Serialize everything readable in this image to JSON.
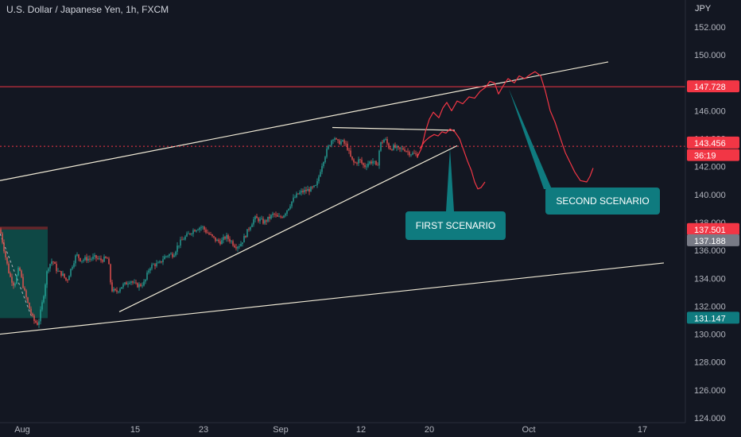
{
  "header": {
    "title": "U.S. Dollar / Japanese Yen, 1h, FXCM",
    "currency": "JPY"
  },
  "colors": {
    "background": "#131722",
    "up": "#26a69a",
    "down": "#ef5350",
    "trendline": "#f0ead6",
    "projection": "#f23645",
    "callout": "#0f7b7f",
    "resistance_line": "#f23645"
  },
  "chart_data": {
    "type": "candlestick",
    "title": "U.S. Dollar / Japanese Yen, 1h, FXCM",
    "ylim": [
      124.0,
      153.2
    ],
    "y_ticks": [
      "152.000",
      "150.000",
      "148.000",
      "146.000",
      "144.000",
      "142.000",
      "140.000",
      "138.000",
      "136.000",
      "134.000",
      "132.000",
      "130.000",
      "128.000",
      "126.000",
      "124.000"
    ],
    "x_ticks": [
      "Aug",
      "15",
      "23",
      "Sep",
      "12",
      "20",
      "Oct",
      "17"
    ],
    "price_path": [
      [
        0,
        137.5
      ],
      [
        6,
        135.8
      ],
      [
        12,
        134.2
      ],
      [
        18,
        133.5
      ],
      [
        24,
        134.8
      ],
      [
        30,
        133.2
      ],
      [
        36,
        132.0
      ],
      [
        42,
        131.0
      ],
      [
        48,
        130.7
      ],
      [
        54,
        132.5
      ],
      [
        60,
        134.8
      ],
      [
        66,
        135.3
      ],
      [
        72,
        134.5
      ],
      [
        78,
        134.3
      ],
      [
        84,
        133.8
      ],
      [
        90,
        134.8
      ],
      [
        96,
        135.7
      ],
      [
        102,
        135.3
      ],
      [
        108,
        135.4
      ],
      [
        114,
        135.4
      ],
      [
        120,
        135.5
      ],
      [
        126,
        135.3
      ],
      [
        132,
        135.4
      ],
      [
        136,
        135.4
      ],
      [
        140,
        133.2
      ],
      [
        146,
        133.0
      ],
      [
        152,
        133.4
      ],
      [
        158,
        133.6
      ],
      [
        164,
        133.9
      ],
      [
        170,
        133.5
      ],
      [
        176,
        133.5
      ],
      [
        182,
        133.7
      ],
      [
        188,
        134.8
      ],
      [
        194,
        135.0
      ],
      [
        200,
        135.0
      ],
      [
        206,
        135.5
      ],
      [
        212,
        135.7
      ],
      [
        218,
        135.7
      ],
      [
        224,
        136.4
      ],
      [
        230,
        136.8
      ],
      [
        236,
        137.1
      ],
      [
        242,
        137.4
      ],
      [
        248,
        137.6
      ],
      [
        254,
        137.7
      ],
      [
        260,
        137.3
      ],
      [
        266,
        137.0
      ],
      [
        272,
        136.7
      ],
      [
        278,
        136.6
      ],
      [
        284,
        137.0
      ],
      [
        290,
        136.7
      ],
      [
        296,
        136.3
      ],
      [
        302,
        136.4
      ],
      [
        308,
        137.0
      ],
      [
        314,
        137.7
      ],
      [
        320,
        138.3
      ],
      [
        326,
        138.2
      ],
      [
        332,
        138.0
      ],
      [
        338,
        138.3
      ],
      [
        344,
        138.6
      ],
      [
        350,
        138.3
      ],
      [
        356,
        138.5
      ],
      [
        362,
        139.0
      ],
      [
        368,
        139.6
      ],
      [
        374,
        140.0
      ],
      [
        380,
        140.2
      ],
      [
        386,
        140.3
      ],
      [
        392,
        140.4
      ],
      [
        398,
        140.6
      ],
      [
        404,
        142.0
      ],
      [
        410,
        143.0
      ],
      [
        416,
        143.8
      ],
      [
        420,
        144.2
      ],
      [
        424,
        143.7
      ],
      [
        430,
        143.8
      ],
      [
        436,
        143.5
      ],
      [
        442,
        142.5
      ],
      [
        446,
        142.2
      ],
      [
        452,
        142.5
      ],
      [
        458,
        142.0
      ],
      [
        464,
        142.3
      ],
      [
        470,
        142.4
      ],
      [
        474,
        141.8
      ],
      [
        478,
        143.6
      ],
      [
        484,
        144.0
      ],
      [
        490,
        143.3
      ],
      [
        496,
        143.4
      ],
      [
        502,
        143.2
      ],
      [
        508,
        143.3
      ],
      [
        514,
        143.0
      ],
      [
        520,
        142.9
      ],
      [
        526,
        142.8
      ]
    ],
    "trendlines": [
      {
        "name": "upper-channel",
        "points": [
          [
            0,
            141.0
          ],
          [
            765,
            149.5
          ]
        ]
      },
      {
        "name": "lower-channel",
        "points": [
          [
            0,
            130.0
          ],
          [
            835,
            135.1
          ]
        ]
      },
      {
        "name": "support",
        "points": [
          [
            150,
            131.6
          ],
          [
            575,
            143.5
          ]
        ]
      },
      {
        "name": "local-top",
        "points": [
          [
            418,
            144.8
          ],
          [
            572,
            144.6
          ]
        ]
      }
    ],
    "projections": [
      {
        "name": "first-scenario-path",
        "points": [
          [
            525,
            142.7
          ],
          [
            530,
            143.3
          ],
          [
            535,
            144.5
          ],
          [
            540,
            145.4
          ],
          [
            545,
            145.9
          ],
          [
            552,
            145.5
          ],
          [
            557,
            146.2
          ],
          [
            562,
            146.6
          ],
          [
            568,
            146.0
          ],
          [
            575,
            146.7
          ],
          [
            582,
            146.5
          ],
          [
            590,
            147.0
          ],
          [
            597,
            146.9
          ],
          [
            604,
            147.4
          ],
          [
            611,
            147.7
          ],
          [
            616,
            148.1
          ],
          [
            622,
            148.0
          ],
          [
            627,
            147.2
          ],
          [
            633,
            147.8
          ],
          [
            639,
            148.3
          ],
          [
            647,
            148.0
          ],
          [
            653,
            148.5
          ],
          [
            660,
            148.3
          ],
          [
            667,
            148.6
          ],
          [
            673,
            148.8
          ],
          [
            680,
            148.5
          ],
          [
            686,
            147.4
          ],
          [
            692,
            146.0
          ],
          [
            698,
            145.2
          ],
          [
            705,
            144.0
          ],
          [
            711,
            143.0
          ],
          [
            717,
            142.3
          ],
          [
            723,
            141.6
          ],
          [
            730,
            141.0
          ],
          [
            738,
            140.9
          ],
          [
            742,
            141.3
          ],
          [
            746,
            141.9
          ]
        ]
      },
      {
        "name": "second-scenario-path",
        "points": [
          [
            528,
            143.3
          ],
          [
            534,
            143.8
          ],
          [
            540,
            144.1
          ],
          [
            546,
            144.3
          ],
          [
            551,
            144.2
          ],
          [
            556,
            144.5
          ],
          [
            561,
            144.4
          ],
          [
            566,
            144.7
          ],
          [
            572,
            144.5
          ],
          [
            578,
            144.0
          ],
          [
            583,
            143.2
          ],
          [
            588,
            142.4
          ],
          [
            593,
            141.7
          ],
          [
            597,
            140.9
          ],
          [
            601,
            140.4
          ],
          [
            605,
            140.5
          ],
          [
            610,
            140.9
          ]
        ]
      }
    ],
    "horizontal_lines": [
      147.728,
      143.456
    ],
    "price_badges": [
      {
        "value": "147.728",
        "y": 147.728,
        "color": "#f23645"
      },
      {
        "value": "143.456",
        "y": 143.7,
        "color": "#f23645"
      },
      {
        "value": "36:19",
        "y": 142.8,
        "color": "#f23645"
      },
      {
        "value": "137.501",
        "y": 137.501,
        "color": "#f23645"
      },
      {
        "value": "137.188",
        "y": 136.7,
        "color": "#787b86"
      },
      {
        "value": "131.147",
        "y": 131.147,
        "color": "#0f7b7f"
      }
    ],
    "annotations": [
      {
        "text": "FIRST SCENARIO"
      },
      {
        "text": "SECOND SCENARIO"
      }
    ]
  }
}
